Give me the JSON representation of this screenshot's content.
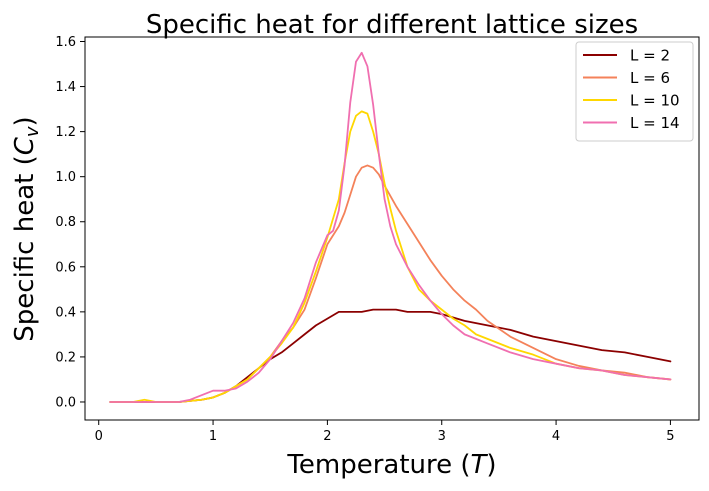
{
  "chart_data": {
    "type": "line",
    "title": "Specific heat for different lattice sizes",
    "xlabel": {
      "prefix": "Temperature (",
      "var": "T",
      "suffix": ")"
    },
    "ylabel": {
      "prefix": "Specific heat (",
      "var": "C",
      "sub": "v",
      "suffix": ")"
    },
    "xlim": [
      -0.12,
      5.25
    ],
    "ylim": [
      -0.08,
      1.62
    ],
    "xticks": [
      0,
      1,
      2,
      3,
      4,
      5
    ],
    "yticks": [
      0.0,
      0.2,
      0.4,
      0.6,
      0.8,
      1.0,
      1.2,
      1.4,
      1.6
    ],
    "legend_position": "top-right",
    "grid": false,
    "series": [
      {
        "name": "L = 2",
        "color": "#8b0000",
        "x": [
          0.1,
          0.3,
          0.5,
          0.7,
          0.9,
          1.0,
          1.1,
          1.2,
          1.3,
          1.4,
          1.5,
          1.6,
          1.7,
          1.8,
          1.9,
          2.0,
          2.1,
          2.2,
          2.3,
          2.4,
          2.5,
          2.6,
          2.7,
          2.8,
          2.9,
          3.0,
          3.2,
          3.4,
          3.6,
          3.8,
          4.0,
          4.2,
          4.4,
          4.6,
          4.8,
          5.0
        ],
        "y": [
          0.0,
          0.0,
          0.0,
          0.0,
          0.01,
          0.02,
          0.04,
          0.07,
          0.11,
          0.15,
          0.19,
          0.22,
          0.26,
          0.3,
          0.34,
          0.37,
          0.4,
          0.4,
          0.4,
          0.41,
          0.41,
          0.41,
          0.4,
          0.4,
          0.4,
          0.39,
          0.36,
          0.34,
          0.32,
          0.29,
          0.27,
          0.25,
          0.23,
          0.22,
          0.2,
          0.18
        ]
      },
      {
        "name": "L = 6",
        "color": "#f4825a",
        "x": [
          0.1,
          0.3,
          0.5,
          0.7,
          0.9,
          1.0,
          1.1,
          1.2,
          1.3,
          1.4,
          1.5,
          1.6,
          1.7,
          1.8,
          1.9,
          2.0,
          2.1,
          2.15,
          2.2,
          2.25,
          2.3,
          2.35,
          2.4,
          2.45,
          2.5,
          2.6,
          2.7,
          2.8,
          2.9,
          3.0,
          3.1,
          3.2,
          3.3,
          3.4,
          3.6,
          3.8,
          4.0,
          4.2,
          4.4,
          4.6,
          4.8,
          5.0
        ],
        "y": [
          0.0,
          0.0,
          0.0,
          0.0,
          0.01,
          0.02,
          0.04,
          0.07,
          0.1,
          0.15,
          0.2,
          0.27,
          0.33,
          0.41,
          0.55,
          0.7,
          0.78,
          0.84,
          0.92,
          1.0,
          1.04,
          1.05,
          1.04,
          1.01,
          0.96,
          0.87,
          0.79,
          0.71,
          0.63,
          0.56,
          0.5,
          0.45,
          0.41,
          0.36,
          0.29,
          0.24,
          0.19,
          0.16,
          0.14,
          0.13,
          0.11,
          0.1
        ]
      },
      {
        "name": "L = 10",
        "color": "#ffd700",
        "x": [
          0.1,
          0.3,
          0.4,
          0.5,
          0.7,
          0.9,
          1.0,
          1.1,
          1.2,
          1.3,
          1.4,
          1.5,
          1.6,
          1.7,
          1.8,
          1.9,
          2.0,
          2.1,
          2.15,
          2.2,
          2.25,
          2.3,
          2.35,
          2.4,
          2.45,
          2.5,
          2.55,
          2.6,
          2.7,
          2.8,
          2.9,
          3.0,
          3.1,
          3.2,
          3.3,
          3.4,
          3.6,
          3.8,
          4.0,
          4.2,
          4.4,
          4.6,
          4.8,
          5.0
        ],
        "y": [
          0.0,
          0.0,
          0.01,
          0.0,
          0.0,
          0.01,
          0.02,
          0.04,
          0.07,
          0.1,
          0.15,
          0.2,
          0.26,
          0.33,
          0.44,
          0.58,
          0.73,
          0.9,
          1.06,
          1.2,
          1.27,
          1.29,
          1.28,
          1.2,
          1.1,
          0.97,
          0.86,
          0.76,
          0.6,
          0.5,
          0.45,
          0.41,
          0.37,
          0.34,
          0.3,
          0.28,
          0.24,
          0.21,
          0.17,
          0.15,
          0.14,
          0.12,
          0.11,
          0.1
        ]
      },
      {
        "name": "L = 14",
        "color": "#f06fb0",
        "x": [
          0.1,
          0.3,
          0.5,
          0.7,
          0.8,
          0.9,
          1.0,
          1.1,
          1.2,
          1.3,
          1.4,
          1.5,
          1.6,
          1.7,
          1.8,
          1.9,
          2.0,
          2.05,
          2.1,
          2.15,
          2.2,
          2.25,
          2.3,
          2.35,
          2.4,
          2.45,
          2.5,
          2.55,
          2.6,
          2.7,
          2.8,
          2.9,
          3.0,
          3.1,
          3.2,
          3.3,
          3.4,
          3.6,
          3.8,
          4.0,
          4.2,
          4.4,
          4.6,
          4.8,
          5.0
        ],
        "y": [
          0.0,
          0.0,
          0.0,
          0.0,
          0.01,
          0.03,
          0.05,
          0.05,
          0.06,
          0.09,
          0.13,
          0.19,
          0.27,
          0.35,
          0.46,
          0.62,
          0.74,
          0.76,
          0.85,
          1.05,
          1.33,
          1.51,
          1.55,
          1.49,
          1.32,
          1.1,
          0.9,
          0.78,
          0.7,
          0.6,
          0.52,
          0.45,
          0.39,
          0.34,
          0.3,
          0.28,
          0.26,
          0.22,
          0.19,
          0.17,
          0.15,
          0.14,
          0.12,
          0.11,
          0.1
        ]
      }
    ]
  }
}
